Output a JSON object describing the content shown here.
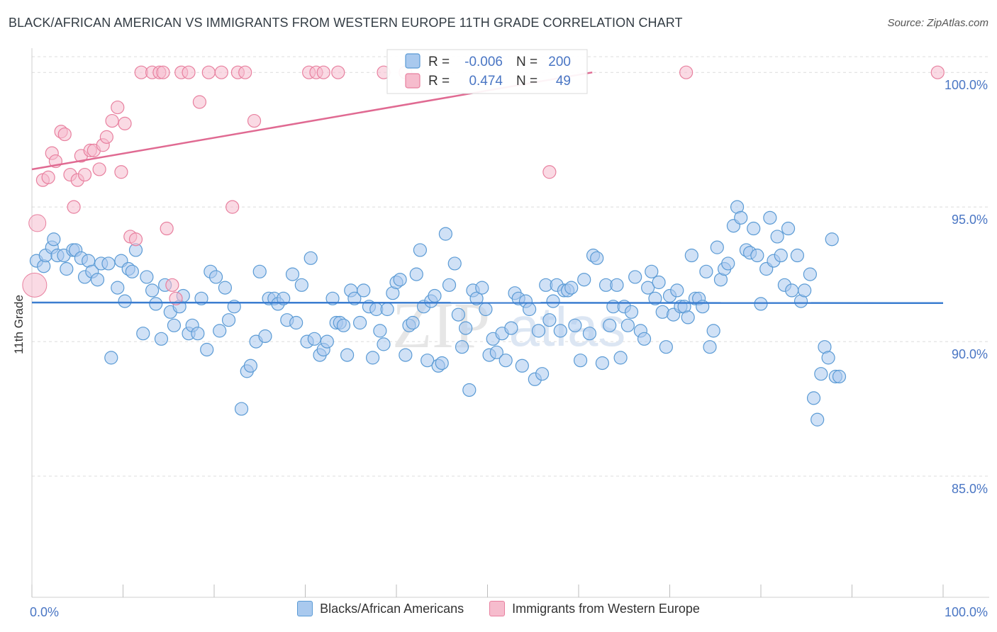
{
  "title": "BLACK/AFRICAN AMERICAN VS IMMIGRANTS FROM WESTERN EUROPE 11TH GRADE CORRELATION CHART",
  "source": "Source: ZipAtlas.com",
  "watermark": {
    "zip": "ZIP",
    "atlas": "atlas"
  },
  "legend_box": {
    "rows": [
      {
        "r_label": "R =",
        "r_value": "-0.006",
        "n_label": "N =",
        "n_value": "200"
      },
      {
        "r_label": "R =",
        "r_value": "0.474",
        "n_label": "N =",
        "n_value": "49"
      }
    ]
  },
  "chart_data": {
    "type": "scatter",
    "title": "BLACK/AFRICAN AMERICAN VS IMMIGRANTS FROM WESTERN EUROPE 11TH GRADE CORRELATION CHART",
    "xlabel": "",
    "ylabel": "11th Grade",
    "xlim": [
      0,
      100
    ],
    "ylim": [
      80.5,
      100.9
    ],
    "x_tick_labels": [
      "0.0%",
      "100.0%"
    ],
    "y_ticks": [
      85,
      90,
      95,
      100
    ],
    "y_tick_labels": [
      "85.0%",
      "90.0%",
      "95.0%",
      "100.0%"
    ],
    "grid": true,
    "legend_position": "bottom",
    "colors": {
      "blue": "#5b9bd5",
      "blue_fill": "#a9c9ee",
      "pink": "#e8809f",
      "pink_fill": "#f6bccd",
      "tick_text": "#4a76c4"
    },
    "series": [
      {
        "name": "Blacks/African Americans",
        "color": "#5b9bd5",
        "trend": {
          "x0": 0,
          "y0": 91.45,
          "x1": 100,
          "y1": 91.43
        },
        "points": [
          [
            0.5,
            93.0
          ],
          [
            1.3,
            92.8
          ],
          [
            1.5,
            93.2
          ],
          [
            2.2,
            93.5
          ],
          [
            2.4,
            93.8
          ],
          [
            2.8,
            93.2
          ],
          [
            3.5,
            93.2
          ],
          [
            3.8,
            92.7
          ],
          [
            4.5,
            93.4
          ],
          [
            4.8,
            93.4
          ],
          [
            5.4,
            93.1
          ],
          [
            5.8,
            92.4
          ],
          [
            6.2,
            93.0
          ],
          [
            6.6,
            92.6
          ],
          [
            7.2,
            92.3
          ],
          [
            7.6,
            92.9
          ],
          [
            8.4,
            92.9
          ],
          [
            8.7,
            89.4
          ],
          [
            9.4,
            92.0
          ],
          [
            9.8,
            93.0
          ],
          [
            10.2,
            91.5
          ],
          [
            10.6,
            92.7
          ],
          [
            11.0,
            92.6
          ],
          [
            11.4,
            93.4
          ],
          [
            12.2,
            90.3
          ],
          [
            12.6,
            92.4
          ],
          [
            13.2,
            91.9
          ],
          [
            13.6,
            91.4
          ],
          [
            14.2,
            90.1
          ],
          [
            14.6,
            92.1
          ],
          [
            15.2,
            91.1
          ],
          [
            15.6,
            90.6
          ],
          [
            16.2,
            91.3
          ],
          [
            16.6,
            91.7
          ],
          [
            17.2,
            90.3
          ],
          [
            17.6,
            90.6
          ],
          [
            18.2,
            90.3
          ],
          [
            18.6,
            91.6
          ],
          [
            19.2,
            89.7
          ],
          [
            19.6,
            92.6
          ],
          [
            20.2,
            92.4
          ],
          [
            20.6,
            90.4
          ],
          [
            21.2,
            92.0
          ],
          [
            21.6,
            90.8
          ],
          [
            22.2,
            91.3
          ],
          [
            23.0,
            87.5
          ],
          [
            23.6,
            88.9
          ],
          [
            24.0,
            89.1
          ],
          [
            24.6,
            90.0
          ],
          [
            25.0,
            92.6
          ],
          [
            25.6,
            90.2
          ],
          [
            26.0,
            91.6
          ],
          [
            26.6,
            91.6
          ],
          [
            27.0,
            91.4
          ],
          [
            27.6,
            91.6
          ],
          [
            28.0,
            90.8
          ],
          [
            28.6,
            92.5
          ],
          [
            29.0,
            90.7
          ],
          [
            29.6,
            92.1
          ],
          [
            30.2,
            90.0
          ],
          [
            30.6,
            93.1
          ],
          [
            31.0,
            90.1
          ],
          [
            31.6,
            89.5
          ],
          [
            32.0,
            89.7
          ],
          [
            32.4,
            90.0
          ],
          [
            33.0,
            91.6
          ],
          [
            33.4,
            90.7
          ],
          [
            33.8,
            90.7
          ],
          [
            34.2,
            90.6
          ],
          [
            34.6,
            89.5
          ],
          [
            35.0,
            91.9
          ],
          [
            35.4,
            91.6
          ],
          [
            36.0,
            90.7
          ],
          [
            36.4,
            91.9
          ],
          [
            37.0,
            91.3
          ],
          [
            37.4,
            89.4
          ],
          [
            37.8,
            91.2
          ],
          [
            38.2,
            90.4
          ],
          [
            38.6,
            89.9
          ],
          [
            39.0,
            91.2
          ],
          [
            39.6,
            91.8
          ],
          [
            40.0,
            92.2
          ],
          [
            40.4,
            92.3
          ],
          [
            41.0,
            89.5
          ],
          [
            41.4,
            90.6
          ],
          [
            41.8,
            90.7
          ],
          [
            42.2,
            92.5
          ],
          [
            42.6,
            93.4
          ],
          [
            43.0,
            91.3
          ],
          [
            43.4,
            89.3
          ],
          [
            43.8,
            91.5
          ],
          [
            44.2,
            91.7
          ],
          [
            44.6,
            89.1
          ],
          [
            45.0,
            89.2
          ],
          [
            45.4,
            94.0
          ],
          [
            45.8,
            92.1
          ],
          [
            46.4,
            92.9
          ],
          [
            46.8,
            91.0
          ],
          [
            47.2,
            89.8
          ],
          [
            47.6,
            90.5
          ],
          [
            48.0,
            88.2
          ],
          [
            48.4,
            91.9
          ],
          [
            48.8,
            91.6
          ],
          [
            49.4,
            92.0
          ],
          [
            49.8,
            91.2
          ],
          [
            50.2,
            89.5
          ],
          [
            50.6,
            90.1
          ],
          [
            51.0,
            89.6
          ],
          [
            51.6,
            90.3
          ],
          [
            52.0,
            89.3
          ],
          [
            52.6,
            90.5
          ],
          [
            53.0,
            91.8
          ],
          [
            53.4,
            91.6
          ],
          [
            53.8,
            89.1
          ],
          [
            54.2,
            91.5
          ],
          [
            54.6,
            91.2
          ],
          [
            55.2,
            88.6
          ],
          [
            55.6,
            90.4
          ],
          [
            56.0,
            88.8
          ],
          [
            56.4,
            92.1
          ],
          [
            56.8,
            90.8
          ],
          [
            57.2,
            91.5
          ],
          [
            57.6,
            92.1
          ],
          [
            58.0,
            90.4
          ],
          [
            58.4,
            91.9
          ],
          [
            58.8,
            91.9
          ],
          [
            59.2,
            92.0
          ],
          [
            59.6,
            90.6
          ],
          [
            60.2,
            89.3
          ],
          [
            60.6,
            92.3
          ],
          [
            61.2,
            90.3
          ],
          [
            61.6,
            93.2
          ],
          [
            62.0,
            93.1
          ],
          [
            62.6,
            89.2
          ],
          [
            63.0,
            92.1
          ],
          [
            63.4,
            90.6
          ],
          [
            63.8,
            91.3
          ],
          [
            64.2,
            92.1
          ],
          [
            64.6,
            89.4
          ],
          [
            65.0,
            91.3
          ],
          [
            65.4,
            90.6
          ],
          [
            65.8,
            91.1
          ],
          [
            66.2,
            92.4
          ],
          [
            66.8,
            90.4
          ],
          [
            67.2,
            90.1
          ],
          [
            67.6,
            92.0
          ],
          [
            68.0,
            92.6
          ],
          [
            68.4,
            91.6
          ],
          [
            68.8,
            92.2
          ],
          [
            69.2,
            91.1
          ],
          [
            69.6,
            89.8
          ],
          [
            70.0,
            91.7
          ],
          [
            70.4,
            91.0
          ],
          [
            70.8,
            91.9
          ],
          [
            71.2,
            91.3
          ],
          [
            71.6,
            91.3
          ],
          [
            72.0,
            90.9
          ],
          [
            72.4,
            93.2
          ],
          [
            72.8,
            91.6
          ],
          [
            73.2,
            91.6
          ],
          [
            73.6,
            91.3
          ],
          [
            74.0,
            92.6
          ],
          [
            74.4,
            89.8
          ],
          [
            74.8,
            90.4
          ],
          [
            75.2,
            93.5
          ],
          [
            75.6,
            92.3
          ],
          [
            76.0,
            92.7
          ],
          [
            76.4,
            92.9
          ],
          [
            77.0,
            94.3
          ],
          [
            77.4,
            95.0
          ],
          [
            77.8,
            94.6
          ],
          [
            78.4,
            93.4
          ],
          [
            78.8,
            93.3
          ],
          [
            79.2,
            94.2
          ],
          [
            79.6,
            93.2
          ],
          [
            80.0,
            91.4
          ],
          [
            80.6,
            92.7
          ],
          [
            81.0,
            94.6
          ],
          [
            81.4,
            93.0
          ],
          [
            81.8,
            93.9
          ],
          [
            82.2,
            93.2
          ],
          [
            82.6,
            92.1
          ],
          [
            83.0,
            94.2
          ],
          [
            83.4,
            91.9
          ],
          [
            84.0,
            93.2
          ],
          [
            84.4,
            91.5
          ],
          [
            84.8,
            91.9
          ],
          [
            85.4,
            92.5
          ],
          [
            85.8,
            87.9
          ],
          [
            86.2,
            87.1
          ],
          [
            86.6,
            88.8
          ],
          [
            87.0,
            89.8
          ],
          [
            87.4,
            89.4
          ],
          [
            87.8,
            93.8
          ],
          [
            88.2,
            88.7
          ],
          [
            88.6,
            88.7
          ]
        ]
      },
      {
        "name": "Immigrants from Western Europe",
        "color": "#e8809f",
        "trend": {
          "x0": 0,
          "y0": 96.4,
          "x1": 61.5,
          "y1": 100.0
        },
        "points": [
          [
            0.3,
            92.1
          ],
          [
            0.6,
            94.4
          ],
          [
            1.2,
            96.0
          ],
          [
            1.8,
            96.1
          ],
          [
            2.2,
            97.0
          ],
          [
            2.6,
            96.7
          ],
          [
            3.2,
            97.8
          ],
          [
            3.6,
            97.7
          ],
          [
            4.2,
            96.2
          ],
          [
            4.6,
            95.0
          ],
          [
            5.0,
            96.0
          ],
          [
            5.4,
            96.9
          ],
          [
            5.8,
            96.2
          ],
          [
            6.4,
            97.1
          ],
          [
            6.8,
            97.1
          ],
          [
            7.4,
            96.4
          ],
          [
            7.8,
            97.3
          ],
          [
            8.2,
            97.6
          ],
          [
            8.8,
            98.2
          ],
          [
            9.4,
            98.7
          ],
          [
            9.8,
            96.3
          ],
          [
            10.2,
            98.1
          ],
          [
            10.8,
            93.9
          ],
          [
            11.4,
            93.8
          ],
          [
            12.0,
            100.0
          ],
          [
            13.2,
            100.0
          ],
          [
            14.0,
            100.0
          ],
          [
            14.4,
            100.0
          ],
          [
            14.8,
            94.2
          ],
          [
            15.4,
            92.1
          ],
          [
            15.8,
            91.6
          ],
          [
            16.4,
            100.0
          ],
          [
            17.2,
            100.0
          ],
          [
            18.4,
            98.9
          ],
          [
            19.4,
            100.0
          ],
          [
            20.8,
            100.0
          ],
          [
            22.0,
            95.0
          ],
          [
            22.6,
            100.0
          ],
          [
            23.4,
            100.0
          ],
          [
            24.4,
            98.2
          ],
          [
            30.4,
            100.0
          ],
          [
            31.2,
            100.0
          ],
          [
            32.0,
            100.0
          ],
          [
            33.6,
            100.0
          ],
          [
            38.6,
            100.0
          ],
          [
            41.0,
            100.0
          ],
          [
            56.8,
            96.3
          ],
          [
            71.8,
            100.0
          ],
          [
            99.4,
            100.0
          ]
        ]
      }
    ]
  }
}
